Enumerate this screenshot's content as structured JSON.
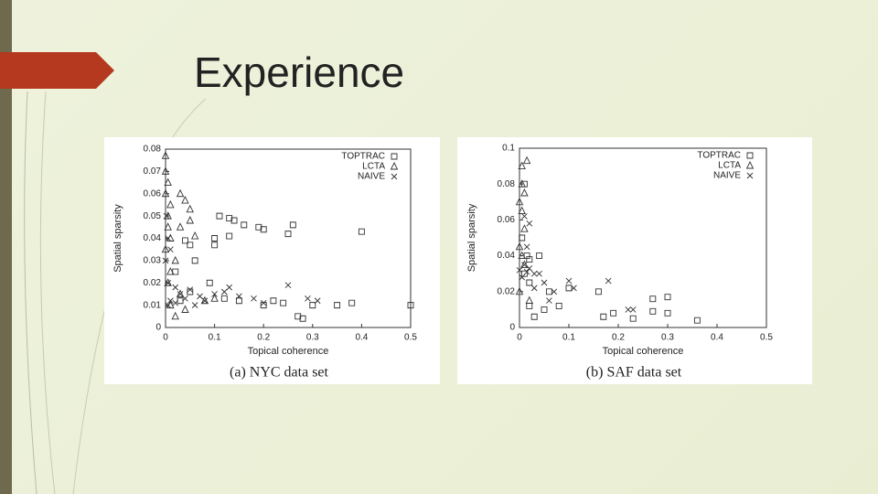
{
  "slide": {
    "title": "Experience"
  },
  "chart_data": [
    {
      "type": "scatter",
      "caption": "(a) NYC data set",
      "x_label": "Topical coherence",
      "y_label": "Spatial sparsity",
      "xlim": [
        0,
        0.5
      ],
      "xticks": [
        0,
        0.1,
        0.2,
        0.3,
        0.4,
        0.5
      ],
      "ylim": [
        0,
        0.08
      ],
      "yticks": [
        0,
        0.01,
        0.02,
        0.03,
        0.04,
        0.05,
        0.06,
        0.07,
        0.08
      ],
      "legend": "upper right",
      "series": [
        {
          "name": "TOPTRAC",
          "marker": "square",
          "color": "#333333",
          "x": [
            0.11,
            0.13,
            0.14,
            0.16,
            0.19,
            0.2,
            0.25,
            0.26,
            0.4,
            0.13,
            0.1,
            0.04,
            0.05,
            0.1,
            0.06,
            0.02,
            0.3,
            0.35,
            0.38,
            0.5,
            0.27,
            0.28,
            0.2,
            0.15,
            0.22,
            0.09,
            0.12,
            0.05,
            0.03,
            0.24
          ],
          "values": [
            0.05,
            0.049,
            0.048,
            0.046,
            0.045,
            0.044,
            0.042,
            0.046,
            0.043,
            0.041,
            0.04,
            0.039,
            0.037,
            0.037,
            0.03,
            0.025,
            0.01,
            0.01,
            0.011,
            0.01,
            0.005,
            0.004,
            0.01,
            0.012,
            0.012,
            0.02,
            0.013,
            0.016,
            0.012,
            0.011
          ]
        },
        {
          "name": "LCTA",
          "marker": "triangle",
          "color": "#333333",
          "x": [
            0,
            0,
            0.005,
            0,
            0.01,
            0.005,
            0.03,
            0.04,
            0.05,
            0.05,
            0.03,
            0.06,
            0.01,
            0,
            0.02,
            0.01,
            0.005,
            0.03,
            0.08,
            0.1,
            0.02,
            0.04,
            0.005,
            0.01
          ],
          "values": [
            0.077,
            0.07,
            0.065,
            0.06,
            0.055,
            0.05,
            0.06,
            0.057,
            0.053,
            0.048,
            0.045,
            0.041,
            0.04,
            0.035,
            0.03,
            0.025,
            0.02,
            0.015,
            0.012,
            0.013,
            0.005,
            0.008,
            0.045,
            0.01
          ]
        },
        {
          "name": "NAIVE",
          "marker": "x",
          "color": "#333333",
          "x": [
            0,
            0.005,
            0.02,
            0.03,
            0.05,
            0.07,
            0.1,
            0.12,
            0.15,
            0.18,
            0.25,
            0.29,
            0.31,
            0.005,
            0.01,
            0.02,
            0.04,
            0.08,
            0.13,
            0.2,
            0.005,
            0.002,
            0.01,
            0.06
          ],
          "values": [
            0.03,
            0.02,
            0.018,
            0.015,
            0.017,
            0.014,
            0.015,
            0.016,
            0.014,
            0.013,
            0.019,
            0.013,
            0.012,
            0.01,
            0.012,
            0.011,
            0.013,
            0.012,
            0.018,
            0.011,
            0.04,
            0.05,
            0.035,
            0.01
          ]
        }
      ]
    },
    {
      "type": "scatter",
      "caption": "(b) SAF data set",
      "x_label": "Topical coherence",
      "y_label": "Spatial sparsity",
      "xlim": [
        0,
        0.5
      ],
      "xticks": [
        0,
        0.1,
        0.2,
        0.3,
        0.4,
        0.5
      ],
      "ylim": [
        0,
        0.1
      ],
      "yticks": [
        0,
        0.02,
        0.04,
        0.06,
        0.08,
        0.1
      ],
      "legend": "upper right",
      "series": [
        {
          "name": "TOPTRAC",
          "marker": "square",
          "color": "#333333",
          "x": [
            0.005,
            0.015,
            0.01,
            0.02,
            0.04,
            0.06,
            0.1,
            0.16,
            0.17,
            0.19,
            0.23,
            0.27,
            0.3,
            0.27,
            0.3,
            0.36,
            0.02,
            0.03,
            0.05,
            0.08,
            0.01,
            0.02
          ],
          "values": [
            0.05,
            0.04,
            0.08,
            0.038,
            0.04,
            0.02,
            0.022,
            0.02,
            0.006,
            0.008,
            0.005,
            0.016,
            0.017,
            0.009,
            0.008,
            0.004,
            0.012,
            0.006,
            0.01,
            0.012,
            0.03,
            0.025
          ]
        },
        {
          "name": "LCTA",
          "marker": "triangle",
          "color": "#333333",
          "x": [
            0.005,
            0.015,
            0.005,
            0.01,
            0,
            0.005,
            0.01,
            0,
            0.005,
            0.01,
            0,
            0.02
          ],
          "values": [
            0.09,
            0.093,
            0.08,
            0.075,
            0.07,
            0.065,
            0.055,
            0.045,
            0.04,
            0.035,
            0.02,
            0.015
          ]
        },
        {
          "name": "NAIVE",
          "marker": "x",
          "color": "#333333",
          "x": [
            0.01,
            0.02,
            0.01,
            0.02,
            0.03,
            0.04,
            0.05,
            0.07,
            0.1,
            0.11,
            0.18,
            0.22,
            0.23,
            0.005,
            0.015,
            0.03,
            0.06,
            0.015,
            0
          ],
          "values": [
            0.062,
            0.058,
            0.035,
            0.033,
            0.03,
            0.03,
            0.025,
            0.02,
            0.026,
            0.022,
            0.026,
            0.01,
            0.01,
            0.028,
            0.031,
            0.022,
            0.015,
            0.045,
            0.032
          ]
        }
      ]
    }
  ]
}
